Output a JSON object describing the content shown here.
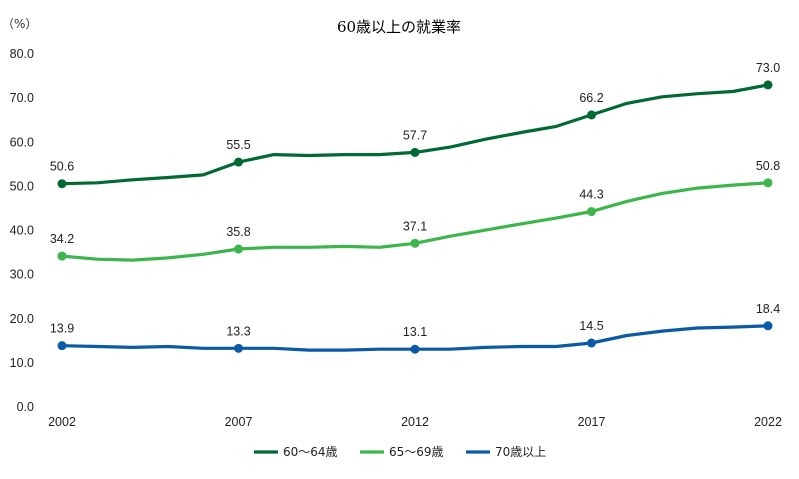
{
  "chart_data": {
    "type": "line",
    "title": "60歳以上の就業率",
    "unit_label": "（%）",
    "ylim": [
      0,
      80
    ],
    "y_ticks": [
      "0.0",
      "10.0",
      "20.0",
      "30.0",
      "40.0",
      "50.0",
      "60.0",
      "70.0",
      "80.0"
    ],
    "x_ticks": [
      "2002",
      "2007",
      "2012",
      "2017",
      "2022"
    ],
    "x": [
      2002,
      2003,
      2004,
      2005,
      2006,
      2007,
      2008,
      2009,
      2010,
      2011,
      2012,
      2013,
      2014,
      2015,
      2016,
      2017,
      2018,
      2019,
      2020,
      2021,
      2022
    ],
    "grid": false,
    "legend_position": "bottom",
    "series": [
      {
        "name": "60～64歳",
        "color": "#006934",
        "values": [
          50.6,
          50.8,
          51.5,
          52.0,
          52.6,
          55.5,
          57.2,
          57.0,
          57.2,
          57.2,
          57.7,
          58.9,
          60.7,
          62.2,
          63.6,
          66.2,
          68.8,
          70.3,
          71.0,
          71.5,
          73.0
        ],
        "labels": [
          {
            "x": 2002,
            "text": "50.6"
          },
          {
            "x": 2007,
            "text": "55.5"
          },
          {
            "x": 2012,
            "text": "57.7"
          },
          {
            "x": 2017,
            "text": "66.2"
          },
          {
            "x": 2022,
            "text": "73.0"
          }
        ]
      },
      {
        "name": "65～69歳",
        "color": "#3cb64a",
        "values": [
          34.2,
          33.5,
          33.3,
          33.8,
          34.6,
          35.8,
          36.2,
          36.2,
          36.4,
          36.2,
          37.1,
          38.7,
          40.1,
          41.5,
          42.8,
          44.3,
          46.6,
          48.4,
          49.6,
          50.3,
          50.8
        ],
        "labels": [
          {
            "x": 2002,
            "text": "34.2"
          },
          {
            "x": 2007,
            "text": "35.8"
          },
          {
            "x": 2012,
            "text": "37.1"
          },
          {
            "x": 2017,
            "text": "44.3"
          },
          {
            "x": 2022,
            "text": "50.8"
          }
        ]
      },
      {
        "name": "70歳以上",
        "color": "#0b5aa8",
        "values": [
          13.9,
          13.7,
          13.5,
          13.7,
          13.3,
          13.3,
          13.3,
          12.9,
          12.9,
          13.1,
          13.1,
          13.1,
          13.5,
          13.7,
          13.7,
          14.5,
          16.2,
          17.2,
          17.9,
          18.1,
          18.4
        ],
        "labels": [
          {
            "x": 2002,
            "text": "13.9"
          },
          {
            "x": 2007,
            "text": "13.3"
          },
          {
            "x": 2012,
            "text": "13.1"
          },
          {
            "x": 2017,
            "text": "14.5"
          },
          {
            "x": 2022,
            "text": "18.4"
          }
        ]
      }
    ]
  }
}
